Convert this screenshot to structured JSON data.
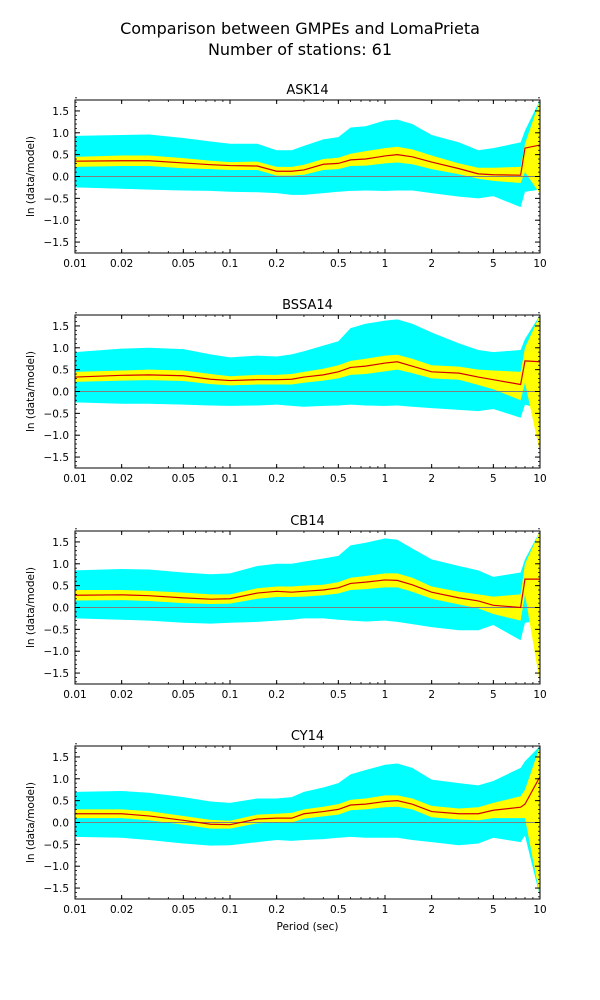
{
  "figure": {
    "title_line1": "Comparison between GMPEs and LomaPrieta",
    "title_line2": "Number of stations: 61",
    "colors": {
      "outer_band": "#00ffff",
      "inner_band": "#ffff00",
      "mean_line": "#d40000",
      "zero_line": "#808080"
    }
  },
  "chart_data": [
    {
      "type": "area",
      "title": "ASK14",
      "xlabel": "",
      "ylabel": "ln (data/model)",
      "xscale": "log",
      "xlim": [
        0.01,
        10
      ],
      "ylim": [
        -1.75,
        1.75
      ],
      "xticks": [
        0.01,
        0.02,
        0.05,
        0.1,
        0.2,
        0.5,
        1,
        2,
        5,
        10
      ],
      "xticklabels": [
        "0.01",
        "0.02",
        "0.05",
        "0.1",
        "0.2",
        "0.5",
        "1",
        "2",
        "5",
        "10"
      ],
      "yticks": [
        -1.5,
        -1.0,
        -0.5,
        0.0,
        0.5,
        1.0,
        1.5
      ],
      "yticklabels": [
        "−1.5",
        "−1.0",
        "−0.5",
        "0.0",
        "0.5",
        "1.0",
        "1.5"
      ],
      "grid": false,
      "x": [
        0.01,
        0.02,
        0.03,
        0.05,
        0.075,
        0.1,
        0.15,
        0.2,
        0.25,
        0.3,
        0.4,
        0.5,
        0.6,
        0.75,
        1.0,
        1.2,
        1.5,
        2.0,
        3.0,
        4.0,
        5.0,
        7.5,
        8.0,
        10.0
      ],
      "series": [
        {
          "kind": "mean",
          "values": [
            0.35,
            0.36,
            0.36,
            0.31,
            0.27,
            0.25,
            0.24,
            0.12,
            0.12,
            0.15,
            0.28,
            0.3,
            0.38,
            0.4,
            0.47,
            0.5,
            0.45,
            0.33,
            0.18,
            0.06,
            0.04,
            0.03,
            0.65,
            0.72
          ]
        },
        {
          "kind": "inner_upper",
          "values": [
            0.45,
            0.48,
            0.48,
            0.42,
            0.36,
            0.33,
            0.34,
            0.22,
            0.22,
            0.27,
            0.4,
            0.43,
            0.52,
            0.58,
            0.65,
            0.68,
            0.62,
            0.48,
            0.3,
            0.2,
            0.2,
            0.22,
            0.75,
            1.75
          ]
        },
        {
          "kind": "inner_lower",
          "values": [
            0.22,
            0.24,
            0.24,
            0.19,
            0.17,
            0.15,
            0.15,
            0.02,
            0.02,
            0.04,
            0.15,
            0.17,
            0.24,
            0.25,
            0.3,
            0.32,
            0.28,
            0.17,
            0.05,
            -0.05,
            -0.1,
            -0.15,
            0.1,
            -0.4
          ]
        },
        {
          "kind": "outer_upper",
          "values": [
            0.93,
            0.95,
            0.96,
            0.88,
            0.8,
            0.75,
            0.75,
            0.6,
            0.6,
            0.7,
            0.85,
            0.9,
            1.12,
            1.15,
            1.28,
            1.3,
            1.2,
            0.95,
            0.78,
            0.6,
            0.65,
            0.78,
            1.05,
            1.75
          ]
        },
        {
          "kind": "outer_lower",
          "values": [
            -0.25,
            -0.28,
            -0.3,
            -0.32,
            -0.33,
            -0.35,
            -0.36,
            -0.38,
            -0.42,
            -0.42,
            -0.38,
            -0.35,
            -0.33,
            -0.32,
            -0.33,
            -0.32,
            -0.32,
            -0.38,
            -0.46,
            -0.5,
            -0.45,
            -0.7,
            -0.35,
            -0.3
          ]
        }
      ]
    },
    {
      "type": "area",
      "title": "BSSA14",
      "xlabel": "",
      "ylabel": "ln (data/model)",
      "xscale": "log",
      "xlim": [
        0.01,
        10
      ],
      "ylim": [
        -1.75,
        1.75
      ],
      "xticks": [
        0.01,
        0.02,
        0.05,
        0.1,
        0.2,
        0.5,
        1,
        2,
        5,
        10
      ],
      "xticklabels": [
        "0.01",
        "0.02",
        "0.05",
        "0.1",
        "0.2",
        "0.5",
        "1",
        "2",
        "5",
        "10"
      ],
      "yticks": [
        -1.5,
        -1.0,
        -0.5,
        0.0,
        0.5,
        1.0,
        1.5
      ],
      "yticklabels": [
        "−1.5",
        "−1.0",
        "−0.5",
        "0.0",
        "0.5",
        "1.0",
        "1.5"
      ],
      "grid": false,
      "x": [
        0.01,
        0.02,
        0.03,
        0.05,
        0.075,
        0.1,
        0.15,
        0.2,
        0.25,
        0.3,
        0.4,
        0.5,
        0.6,
        0.75,
        1.0,
        1.2,
        1.5,
        2.0,
        3.0,
        4.0,
        5.0,
        7.5,
        8.0,
        10.0
      ],
      "series": [
        {
          "kind": "mean",
          "values": [
            0.33,
            0.37,
            0.38,
            0.36,
            0.28,
            0.25,
            0.27,
            0.27,
            0.28,
            0.33,
            0.38,
            0.45,
            0.55,
            0.58,
            0.65,
            0.68,
            0.58,
            0.45,
            0.42,
            0.33,
            0.27,
            0.16,
            0.7,
            0.68
          ]
        },
        {
          "kind": "inner_upper",
          "values": [
            0.45,
            0.48,
            0.5,
            0.48,
            0.4,
            0.35,
            0.38,
            0.38,
            0.4,
            0.45,
            0.52,
            0.6,
            0.7,
            0.75,
            0.82,
            0.84,
            0.75,
            0.6,
            0.57,
            0.5,
            0.48,
            0.45,
            1.0,
            1.75
          ]
        },
        {
          "kind": "inner_lower",
          "values": [
            0.22,
            0.25,
            0.26,
            0.24,
            0.17,
            0.14,
            0.16,
            0.16,
            0.16,
            0.2,
            0.25,
            0.3,
            0.38,
            0.4,
            0.46,
            0.5,
            0.42,
            0.3,
            0.27,
            0.15,
            0.05,
            -0.2,
            0.2,
            -1.4
          ]
        },
        {
          "kind": "outer_upper",
          "values": [
            0.9,
            0.98,
            1.0,
            0.97,
            0.85,
            0.78,
            0.82,
            0.8,
            0.85,
            0.92,
            1.05,
            1.15,
            1.45,
            1.55,
            1.62,
            1.65,
            1.55,
            1.35,
            1.1,
            0.95,
            0.9,
            0.95,
            1.2,
            1.75
          ]
        },
        {
          "kind": "outer_lower",
          "values": [
            -0.25,
            -0.28,
            -0.28,
            -0.3,
            -0.32,
            -0.33,
            -0.32,
            -0.3,
            -0.33,
            -0.35,
            -0.33,
            -0.32,
            -0.3,
            -0.32,
            -0.33,
            -0.32,
            -0.35,
            -0.38,
            -0.42,
            -0.45,
            -0.4,
            -0.6,
            -0.3,
            -0.4
          ]
        }
      ]
    },
    {
      "type": "area",
      "title": "CB14",
      "xlabel": "",
      "ylabel": "ln (data/model)",
      "xscale": "log",
      "xlim": [
        0.01,
        10
      ],
      "ylim": [
        -1.75,
        1.75
      ],
      "xticks": [
        0.01,
        0.02,
        0.05,
        0.1,
        0.2,
        0.5,
        1,
        2,
        5,
        10
      ],
      "xticklabels": [
        "0.01",
        "0.02",
        "0.05",
        "0.1",
        "0.2",
        "0.5",
        "1",
        "2",
        "5",
        "10"
      ],
      "yticks": [
        -1.5,
        -1.0,
        -0.5,
        0.0,
        0.5,
        1.0,
        1.5
      ],
      "yticklabels": [
        "−1.5",
        "−1.0",
        "−0.5",
        "0.0",
        "0.5",
        "1.0",
        "1.5"
      ],
      "grid": false,
      "x": [
        0.01,
        0.02,
        0.03,
        0.05,
        0.075,
        0.1,
        0.15,
        0.2,
        0.25,
        0.3,
        0.4,
        0.5,
        0.6,
        0.75,
        1.0,
        1.2,
        1.5,
        2.0,
        3.0,
        4.0,
        5.0,
        7.5,
        8.0,
        10.0
      ],
      "series": [
        {
          "kind": "mean",
          "values": [
            0.28,
            0.29,
            0.27,
            0.22,
            0.19,
            0.2,
            0.33,
            0.37,
            0.35,
            0.37,
            0.4,
            0.45,
            0.55,
            0.58,
            0.63,
            0.62,
            0.52,
            0.35,
            0.22,
            0.15,
            0.05,
            0.0,
            0.65,
            0.65
          ]
        },
        {
          "kind": "inner_upper",
          "values": [
            0.4,
            0.4,
            0.38,
            0.34,
            0.3,
            0.3,
            0.44,
            0.48,
            0.48,
            0.5,
            0.52,
            0.58,
            0.68,
            0.72,
            0.78,
            0.78,
            0.68,
            0.48,
            0.36,
            0.3,
            0.25,
            0.3,
            1.0,
            1.75
          ]
        },
        {
          "kind": "inner_lower",
          "values": [
            0.16,
            0.17,
            0.15,
            0.1,
            0.08,
            0.09,
            0.2,
            0.24,
            0.24,
            0.25,
            0.28,
            0.32,
            0.4,
            0.42,
            0.46,
            0.46,
            0.36,
            0.2,
            0.07,
            -0.02,
            -0.15,
            -0.3,
            0.3,
            -1.75
          ]
        },
        {
          "kind": "outer_upper",
          "values": [
            0.85,
            0.88,
            0.87,
            0.8,
            0.76,
            0.78,
            0.95,
            1.0,
            1.0,
            1.05,
            1.12,
            1.18,
            1.42,
            1.48,
            1.58,
            1.55,
            1.35,
            1.1,
            0.95,
            0.85,
            0.7,
            0.8,
            1.1,
            1.75
          ]
        },
        {
          "kind": "outer_lower",
          "values": [
            -0.25,
            -0.28,
            -0.3,
            -0.35,
            -0.37,
            -0.35,
            -0.33,
            -0.3,
            -0.28,
            -0.25,
            -0.25,
            -0.28,
            -0.3,
            -0.32,
            -0.3,
            -0.33,
            -0.38,
            -0.45,
            -0.52,
            -0.52,
            -0.4,
            -0.75,
            -0.35,
            -0.3
          ]
        }
      ]
    },
    {
      "type": "area",
      "title": "CY14",
      "xlabel": "Period (sec)",
      "ylabel": "ln (data/model)",
      "xscale": "log",
      "xlim": [
        0.01,
        10
      ],
      "ylim": [
        -1.75,
        1.75
      ],
      "xticks": [
        0.01,
        0.02,
        0.05,
        0.1,
        0.2,
        0.5,
        1,
        2,
        5,
        10
      ],
      "xticklabels": [
        "0.01",
        "0.02",
        "0.05",
        "0.1",
        "0.2",
        "0.5",
        "1",
        "2",
        "5",
        "10"
      ],
      "yticks": [
        -1.5,
        -1.0,
        -0.5,
        0.0,
        0.5,
        1.0,
        1.5
      ],
      "yticklabels": [
        "−1.5",
        "−1.0",
        "−0.5",
        "0.0",
        "0.5",
        "1.0",
        "1.5"
      ],
      "grid": false,
      "x": [
        0.01,
        0.02,
        0.03,
        0.05,
        0.075,
        0.1,
        0.15,
        0.2,
        0.25,
        0.3,
        0.4,
        0.5,
        0.6,
        0.75,
        1.0,
        1.2,
        1.5,
        2.0,
        3.0,
        4.0,
        5.0,
        7.5,
        8.0,
        10.0
      ],
      "series": [
        {
          "kind": "mean",
          "values": [
            0.2,
            0.2,
            0.15,
            0.05,
            -0.04,
            -0.05,
            0.08,
            0.1,
            0.1,
            0.2,
            0.25,
            0.3,
            0.4,
            0.42,
            0.48,
            0.5,
            0.42,
            0.25,
            0.2,
            0.2,
            0.28,
            0.35,
            0.42,
            1.05
          ]
        },
        {
          "kind": "inner_upper",
          "values": [
            0.3,
            0.3,
            0.26,
            0.15,
            0.06,
            0.04,
            0.18,
            0.2,
            0.22,
            0.3,
            0.36,
            0.42,
            0.52,
            0.55,
            0.62,
            0.62,
            0.55,
            0.38,
            0.32,
            0.35,
            0.45,
            0.6,
            0.75,
            1.75
          ]
        },
        {
          "kind": "inner_lower",
          "values": [
            0.1,
            0.1,
            0.05,
            -0.05,
            -0.14,
            -0.14,
            -0.02,
            0.0,
            0.0,
            0.09,
            0.14,
            0.18,
            0.28,
            0.3,
            0.35,
            0.36,
            0.3,
            0.12,
            0.07,
            0.05,
            0.1,
            0.1,
            0.1,
            -1.7
          ]
        },
        {
          "kind": "outer_upper",
          "values": [
            0.7,
            0.72,
            0.68,
            0.58,
            0.48,
            0.45,
            0.55,
            0.55,
            0.58,
            0.7,
            0.8,
            0.9,
            1.1,
            1.2,
            1.32,
            1.35,
            1.25,
            0.98,
            0.9,
            0.85,
            0.95,
            1.25,
            1.4,
            1.75
          ]
        },
        {
          "kind": "outer_lower",
          "values": [
            -0.33,
            -0.35,
            -0.4,
            -0.48,
            -0.53,
            -0.52,
            -0.45,
            -0.4,
            -0.42,
            -0.4,
            -0.38,
            -0.35,
            -0.33,
            -0.35,
            -0.35,
            -0.35,
            -0.4,
            -0.45,
            -0.52,
            -0.48,
            -0.35,
            -0.45,
            -0.3,
            -1.7
          ]
        }
      ]
    }
  ]
}
